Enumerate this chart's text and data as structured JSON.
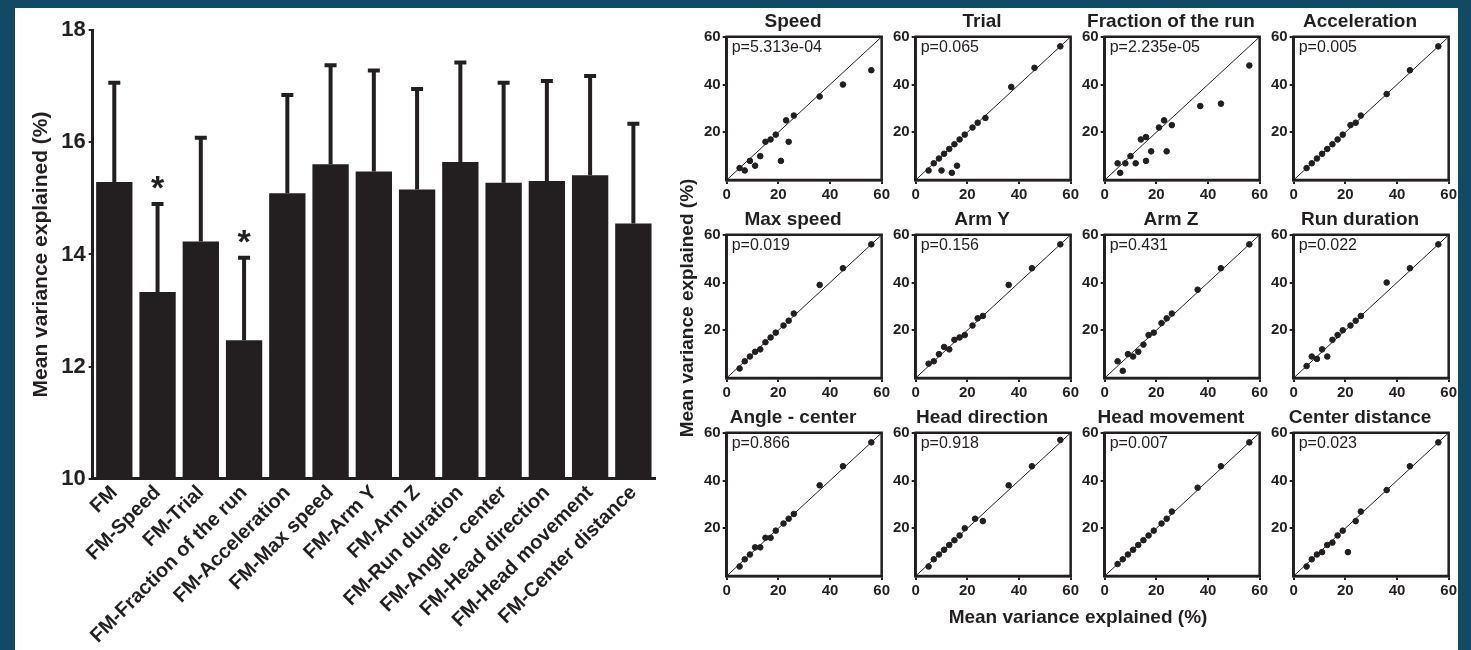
{
  "chart_data": [
    {
      "type": "bar",
      "ylabel": "Mean variance explained (%)",
      "categories": [
        "FM",
        "FM-Speed",
        "FM-Trial",
        "FM-Fraction of the run",
        "FM-Acceleration",
        "FM-Max speed",
        "FM-Arm Y",
        "FM-Arm Z",
        "FM-Run duration",
        "FM-Angle - center",
        "FM-Head direction",
        "FM-Head movement",
        "FM-Center distance"
      ],
      "values": [
        15.29,
        13.33,
        14.23,
        12.47,
        15.09,
        15.61,
        15.48,
        15.16,
        15.65,
        15.28,
        15.31,
        15.41,
        14.55
      ],
      "errors": [
        [
          15.29,
          17.06
        ],
        [
          13.33,
          14.9
        ],
        [
          14.23,
          16.08
        ],
        [
          12.47,
          13.94
        ],
        [
          15.09,
          16.84
        ],
        [
          15.61,
          17.37
        ],
        [
          15.48,
          17.28
        ],
        [
          15.16,
          16.95
        ],
        [
          15.65,
          17.42
        ],
        [
          15.28,
          17.06
        ],
        [
          15.31,
          17.09
        ],
        [
          15.41,
          17.18
        ],
        [
          14.55,
          16.33
        ]
      ],
      "color": "#231f20",
      "ylim": [
        10,
        18
      ],
      "yticks": [
        10,
        12,
        14,
        16,
        18
      ],
      "annotations": [
        {
          "text": "*",
          "x": "FM-Speed",
          "y": 14.9
        },
        {
          "text": "*",
          "x": "FM-Fraction of the run",
          "y": 13.94
        }
      ]
    },
    {
      "type": "scatter",
      "title": "Speed",
      "xlim": [
        0,
        60
      ],
      "ylim": [
        0,
        60
      ],
      "xticks": [
        0,
        20,
        40,
        60
      ],
      "yticks": [
        20,
        40,
        60
      ],
      "annotations": [
        "p=5.313e-04"
      ],
      "series": [
        {
          "color": "#231f20",
          "marker": "circle",
          "x": [
            5,
            7,
            9,
            11,
            13,
            15,
            17,
            19,
            21,
            23,
            24,
            26,
            36,
            45,
            56
          ],
          "values": [
            5,
            4,
            8,
            6,
            10,
            16,
            17,
            19,
            8,
            25,
            16,
            27,
            35,
            40,
            46
          ]
        },
        {
          "type": "line",
          "marker": "none",
          "color": "#231f20",
          "x": [
            0,
            60
          ],
          "values": [
            0,
            60
          ]
        }
      ]
    },
    {
      "type": "scatter",
      "title": "Trial",
      "xlim": [
        0,
        60
      ],
      "ylim": [
        0,
        60
      ],
      "xticks": [
        0,
        20,
        40,
        60
      ],
      "yticks": [
        20,
        40,
        60
      ],
      "annotations": [
        "p=0.065"
      ],
      "series": [
        {
          "color": "#231f20",
          "marker": "circle",
          "x": [
            5,
            7,
            9,
            10,
            11,
            13,
            14,
            15,
            16,
            17,
            19,
            22,
            24,
            27,
            37,
            46,
            56
          ],
          "values": [
            4,
            7,
            9,
            4,
            11,
            13,
            3,
            15,
            6,
            17,
            19,
            22,
            24,
            26,
            39,
            47,
            56
          ]
        },
        {
          "type": "line",
          "marker": "none",
          "color": "#231f20",
          "x": [
            0,
            60
          ],
          "values": [
            0,
            60
          ]
        }
      ]
    },
    {
      "type": "scatter",
      "title": "Fraction of the run",
      "xlim": [
        0,
        60
      ],
      "ylim": [
        0,
        60
      ],
      "xticks": [
        0,
        20,
        40,
        60
      ],
      "yticks": [
        20,
        40,
        60
      ],
      "annotations": [
        "p=2.235e-05"
      ],
      "series": [
        {
          "color": "#231f20",
          "marker": "circle",
          "x": [
            5,
            6,
            8,
            10,
            12,
            14,
            16,
            16,
            18,
            21,
            23,
            24,
            26,
            37,
            45,
            56
          ],
          "values": [
            7,
            3,
            7,
            10,
            7,
            17,
            8,
            18,
            12,
            22,
            25,
            12,
            23,
            31,
            32,
            48
          ]
        },
        {
          "type": "line",
          "marker": "none",
          "color": "#231f20",
          "x": [
            0,
            60
          ],
          "values": [
            0,
            60
          ]
        }
      ]
    },
    {
      "type": "scatter",
      "title": "Acceleration",
      "xlim": [
        0,
        60
      ],
      "ylim": [
        0,
        60
      ],
      "xticks": [
        0,
        20,
        40,
        60
      ],
      "yticks": [
        20,
        40,
        60
      ],
      "annotations": [
        "p=0.005"
      ],
      "series": [
        {
          "color": "#231f20",
          "marker": "circle",
          "x": [
            5,
            7,
            9,
            11,
            13,
            15,
            17,
            19,
            22,
            24,
            26,
            36,
            45,
            56
          ],
          "values": [
            5,
            7,
            9,
            11,
            13,
            15,
            17,
            19,
            23,
            24,
            27,
            36,
            46,
            56
          ]
        },
        {
          "type": "line",
          "marker": "none",
          "color": "#231f20",
          "x": [
            0,
            60
          ],
          "values": [
            0,
            60
          ]
        }
      ]
    },
    {
      "type": "scatter",
      "title": "Max speed",
      "ylabel": "Mean variance explained (%)",
      "xlim": [
        0,
        60
      ],
      "ylim": [
        0,
        60
      ],
      "xticks": [
        0,
        20,
        40,
        60
      ],
      "yticks": [
        20,
        40,
        60
      ],
      "annotations": [
        "p=0.019"
      ],
      "series": [
        {
          "color": "#231f20",
          "marker": "circle",
          "x": [
            5,
            7,
            9,
            11,
            13,
            15,
            17,
            19,
            22,
            24,
            26,
            36,
            45,
            56
          ],
          "values": [
            4,
            7,
            9,
            11,
            12,
            15,
            17,
            19,
            22,
            24,
            27,
            39,
            46,
            56
          ]
        },
        {
          "type": "line",
          "marker": "none",
          "color": "#231f20",
          "x": [
            0,
            60
          ],
          "values": [
            0,
            60
          ]
        }
      ]
    },
    {
      "type": "scatter",
      "title": "Arm Y",
      "xlim": [
        0,
        60
      ],
      "ylim": [
        0,
        60
      ],
      "xticks": [
        0,
        20,
        40,
        60
      ],
      "yticks": [
        20,
        40,
        60
      ],
      "annotations": [
        "p=0.156"
      ],
      "series": [
        {
          "color": "#231f20",
          "marker": "circle",
          "x": [
            5,
            7,
            9,
            11,
            13,
            15,
            17,
            19,
            22,
            24,
            26,
            36,
            45,
            56
          ],
          "values": [
            6,
            7,
            10,
            13,
            12,
            16,
            17,
            18,
            22,
            25,
            26,
            39,
            46,
            56
          ]
        },
        {
          "type": "line",
          "marker": "none",
          "color": "#231f20",
          "x": [
            0,
            60
          ],
          "values": [
            0,
            60
          ]
        }
      ]
    },
    {
      "type": "scatter",
      "title": "Arm Z",
      "xlim": [
        0,
        60
      ],
      "ylim": [
        0,
        60
      ],
      "xticks": [
        0,
        20,
        40,
        60
      ],
      "yticks": [
        20,
        40,
        60
      ],
      "annotations": [
        "p=0.431"
      ],
      "series": [
        {
          "color": "#231f20",
          "marker": "circle",
          "x": [
            5,
            7,
            9,
            11,
            13,
            15,
            17,
            19,
            22,
            24,
            26,
            36,
            45,
            56
          ],
          "values": [
            7,
            3,
            10,
            9,
            11,
            14,
            18,
            19,
            23,
            25,
            27,
            37,
            46,
            56
          ]
        },
        {
          "type": "line",
          "marker": "none",
          "color": "#231f20",
          "x": [
            0,
            60
          ],
          "values": [
            0,
            60
          ]
        }
      ]
    },
    {
      "type": "scatter",
      "title": "Run duration",
      "xlim": [
        0,
        60
      ],
      "ylim": [
        0,
        60
      ],
      "xticks": [
        0,
        20,
        40,
        60
      ],
      "yticks": [
        20,
        40,
        60
      ],
      "annotations": [
        "p=0.022"
      ],
      "series": [
        {
          "color": "#231f20",
          "marker": "circle",
          "x": [
            5,
            7,
            9,
            11,
            13,
            15,
            17,
            19,
            22,
            24,
            26,
            36,
            45,
            56
          ],
          "values": [
            5,
            9,
            8,
            12,
            9,
            16,
            18,
            20,
            22,
            24,
            26,
            40,
            46,
            56
          ]
        },
        {
          "type": "line",
          "marker": "none",
          "color": "#231f20",
          "x": [
            0,
            60
          ],
          "values": [
            0,
            60
          ]
        }
      ]
    },
    {
      "type": "scatter",
      "title": "Angle - center",
      "xlim": [
        0,
        60
      ],
      "ylim": [
        0,
        60
      ],
      "xticks": [
        0,
        20,
        40,
        60
      ],
      "yticks": [
        20,
        40,
        60
      ],
      "annotations": [
        "p=0.866"
      ],
      "series": [
        {
          "color": "#231f20",
          "marker": "circle",
          "x": [
            5,
            7,
            9,
            11,
            13,
            15,
            17,
            19,
            22,
            24,
            26,
            36,
            45,
            56
          ],
          "values": [
            4,
            7,
            9,
            12,
            12,
            16,
            16,
            19,
            22,
            24,
            26,
            38,
            46,
            56
          ]
        },
        {
          "type": "line",
          "marker": "none",
          "color": "#231f20",
          "x": [
            0,
            60
          ],
          "values": [
            0,
            60
          ]
        }
      ]
    },
    {
      "type": "scatter",
      "title": "Head direction",
      "xlabel": "Mean variance explained (%)",
      "xlim": [
        0,
        60
      ],
      "ylim": [
        0,
        60
      ],
      "xticks": [
        0,
        20,
        40,
        60
      ],
      "yticks": [
        20,
        40,
        60
      ],
      "annotations": [
        "p=0.918"
      ],
      "series": [
        {
          "color": "#231f20",
          "marker": "circle",
          "x": [
            5,
            7,
            9,
            11,
            13,
            15,
            17,
            19,
            23,
            26,
            36,
            45,
            56
          ],
          "values": [
            4,
            7,
            9,
            11,
            13,
            15,
            17,
            20,
            24,
            23,
            38,
            46,
            57
          ]
        },
        {
          "type": "line",
          "marker": "none",
          "color": "#231f20",
          "x": [
            0,
            60
          ],
          "values": [
            0,
            60
          ]
        }
      ]
    },
    {
      "type": "scatter",
      "title": "Head movement",
      "xlim": [
        0,
        60
      ],
      "ylim": [
        0,
        60
      ],
      "xticks": [
        0,
        20,
        40,
        60
      ],
      "yticks": [
        20,
        40,
        60
      ],
      "annotations": [
        "p=0.007"
      ],
      "series": [
        {
          "color": "#231f20",
          "marker": "circle",
          "x": [
            5,
            7,
            9,
            11,
            13,
            15,
            17,
            19,
            22,
            24,
            26,
            36,
            45,
            56
          ],
          "values": [
            5,
            7,
            9,
            11,
            13,
            15,
            17,
            19,
            22,
            24,
            27,
            37,
            46,
            56
          ]
        },
        {
          "type": "line",
          "marker": "none",
          "color": "#231f20",
          "x": [
            0,
            60
          ],
          "values": [
            0,
            60
          ]
        }
      ]
    },
    {
      "type": "scatter",
      "title": "Center distance",
      "xlim": [
        0,
        60
      ],
      "ylim": [
        0,
        60
      ],
      "xticks": [
        0,
        20,
        40,
        60
      ],
      "yticks": [
        20,
        40,
        60
      ],
      "annotations": [
        "p=0.023"
      ],
      "series": [
        {
          "color": "#231f20",
          "marker": "circle",
          "x": [
            5,
            7,
            9,
            11,
            13,
            15,
            17,
            19,
            21,
            24,
            26,
            36,
            45,
            56
          ],
          "values": [
            4,
            7,
            9,
            10,
            13,
            14,
            17,
            19,
            10,
            23,
            27,
            36,
            46,
            56
          ]
        },
        {
          "type": "line",
          "marker": "none",
          "color": "#231f20",
          "x": [
            0,
            60
          ],
          "values": [
            0,
            60
          ]
        }
      ]
    }
  ]
}
